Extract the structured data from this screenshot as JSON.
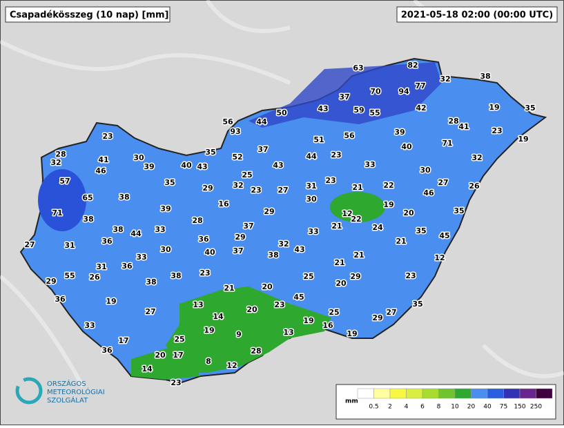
{
  "header": {
    "title": "Csapadékösszeg (10 nap) [mm]",
    "timestamp": "2021-05-18 02:00 (00:00 UTC)"
  },
  "stations": [
    63,
    82,
    32,
    38,
    37,
    70,
    94,
    77,
    43,
    59,
    55,
    42,
    19,
    35,
    50,
    56,
    44,
    28,
    41,
    93,
    39,
    23,
    19,
    23,
    51,
    56,
    40,
    71,
    28,
    32,
    41,
    30,
    35,
    37,
    44,
    23,
    32,
    39,
    40,
    43,
    52,
    43,
    33,
    30,
    46,
    25,
    32,
    23,
    27,
    31,
    23,
    21,
    22,
    27,
    26,
    57,
    35,
    29,
    46,
    65,
    38,
    30,
    12,
    22,
    19,
    20,
    35,
    16,
    39,
    29,
    71,
    38,
    28,
    37,
    21,
    24,
    35,
    38,
    44,
    33,
    33,
    45,
    27,
    31,
    36,
    36,
    29,
    32,
    43,
    21,
    30,
    40,
    37,
    38,
    21,
    12,
    33,
    31,
    36,
    21,
    26,
    55,
    29,
    38,
    23,
    25,
    29,
    23,
    20,
    38,
    21,
    20,
    36,
    19,
    45,
    13,
    23,
    35,
    20,
    27,
    25,
    29,
    27,
    14,
    19,
    16,
    33,
    19,
    9,
    13,
    19,
    17,
    25,
    36,
    28,
    20,
    17,
    8,
    12,
    14,
    23
  ],
  "legend": {
    "unit": "mm",
    "ticks": [
      0.5,
      2,
      4,
      6,
      8,
      10,
      20,
      40,
      75,
      150,
      250
    ],
    "colors": [
      "#ffffff",
      "#ffffa0",
      "#f8f840",
      "#d8ee40",
      "#a8dc30",
      "#70c430",
      "#2ea82e",
      "#4a8ef0",
      "#2a5ee0",
      "#3232b4",
      "#6a2490",
      "#400040"
    ]
  },
  "logo": {
    "line1": "ORSZÁGOS",
    "line2": "METEOROLÓGIAI",
    "line3": "SZOLGÁLAT"
  }
}
